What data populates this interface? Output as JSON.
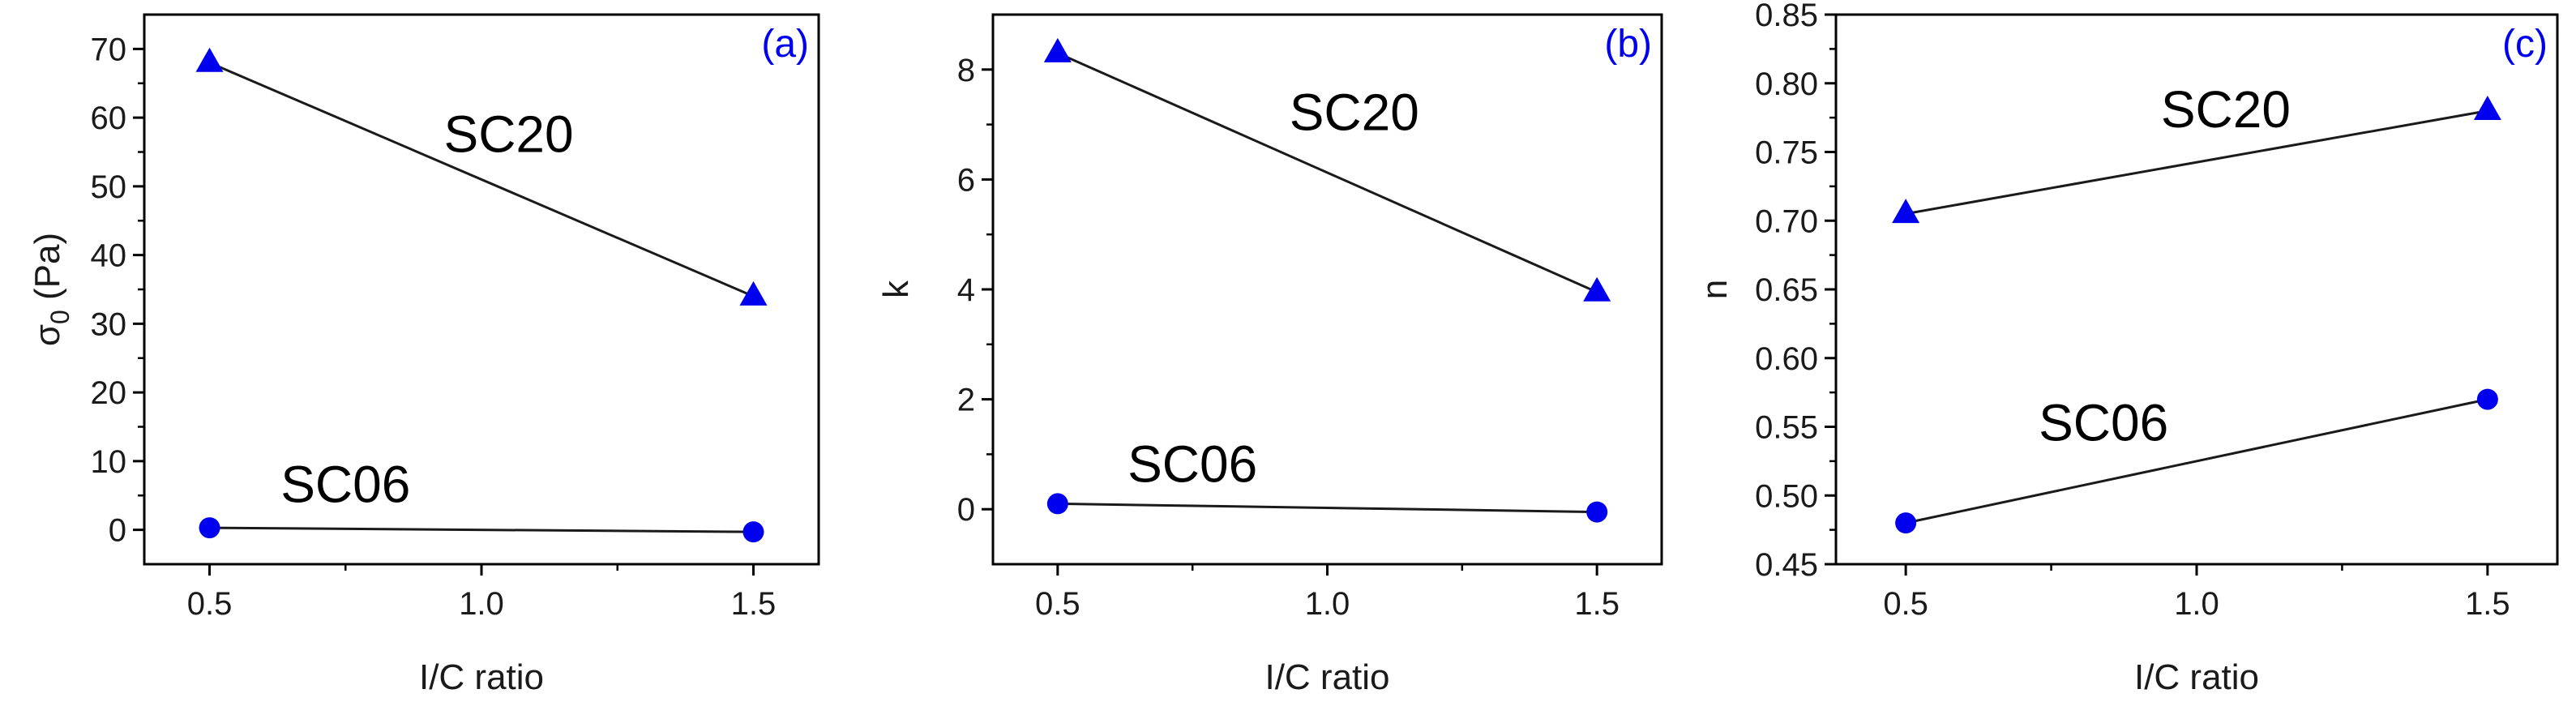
{
  "colors": {
    "marker": "#0000ee",
    "line": "#1a1a1a",
    "panel_letter": "#0000ee"
  },
  "chart_data": [
    {
      "type": "line",
      "panel_label": "(a)",
      "xlabel": "I/C ratio",
      "ylabel_main": "σ",
      "ylabel_sub": "0",
      "ylabel_rest": " (Pa)",
      "xlim": [
        0.38,
        1.62
      ],
      "ylim": [
        -5,
        75
      ],
      "xticks": [
        0.5,
        1.0,
        1.5
      ],
      "xtick_labels": [
        "0.5",
        "1.0",
        "1.5"
      ],
      "yticks": [
        0,
        10,
        20,
        30,
        40,
        50,
        60,
        70
      ],
      "ytick_labels": [
        "0",
        "10",
        "20",
        "30",
        "40",
        "50",
        "60",
        "70"
      ],
      "series": [
        {
          "name": "SC20",
          "marker": "triangle",
          "x": [
            0.5,
            1.5
          ],
          "y": [
            68,
            34
          ],
          "label_at": [
            1.05,
            55
          ]
        },
        {
          "name": "SC06",
          "marker": "circle",
          "x": [
            0.5,
            1.5
          ],
          "y": [
            0.3,
            -0.3
          ],
          "label_at": [
            0.75,
            4
          ]
        }
      ]
    },
    {
      "type": "line",
      "panel_label": "(b)",
      "xlabel": "I/C ratio",
      "ylabel_main": "k",
      "ylabel_sub": "",
      "ylabel_rest": "",
      "xlim": [
        0.38,
        1.62
      ],
      "ylim": [
        -1,
        9
      ],
      "xticks": [
        0.5,
        1.0,
        1.5
      ],
      "xtick_labels": [
        "0.5",
        "1.0",
        "1.5"
      ],
      "yticks": [
        0,
        2,
        4,
        6,
        8
      ],
      "ytick_labels": [
        "0",
        "2",
        "4",
        "6",
        "8"
      ],
      "series": [
        {
          "name": "SC20",
          "marker": "triangle",
          "x": [
            0.5,
            1.5
          ],
          "y": [
            8.3,
            3.95
          ],
          "label_at": [
            1.05,
            6.9
          ]
        },
        {
          "name": "SC06",
          "marker": "circle",
          "x": [
            0.5,
            1.5
          ],
          "y": [
            0.1,
            -0.05
          ],
          "label_at": [
            0.75,
            0.5
          ]
        }
      ]
    },
    {
      "type": "line",
      "panel_label": "(c)",
      "xlabel": "I/C ratio",
      "ylabel_main": "n",
      "ylabel_sub": "",
      "ylabel_rest": "",
      "xlim": [
        0.38,
        1.62
      ],
      "ylim": [
        0.45,
        0.85
      ],
      "xticks": [
        0.5,
        1.0,
        1.5
      ],
      "xtick_labels": [
        "0.5",
        "1.0",
        "1.5"
      ],
      "yticks": [
        0.45,
        0.5,
        0.55,
        0.6,
        0.65,
        0.7,
        0.75,
        0.8,
        0.85
      ],
      "ytick_labels": [
        "0.45",
        "0.50",
        "0.55",
        "0.60",
        "0.65",
        "0.70",
        "0.75",
        "0.80",
        "0.85"
      ],
      "series": [
        {
          "name": "SC20",
          "marker": "triangle",
          "x": [
            0.5,
            1.5
          ],
          "y": [
            0.705,
            0.78
          ],
          "label_at": [
            1.05,
            0.768
          ]
        },
        {
          "name": "SC06",
          "marker": "circle",
          "x": [
            0.5,
            1.5
          ],
          "y": [
            0.48,
            0.57
          ],
          "label_at": [
            0.84,
            0.54
          ]
        }
      ]
    }
  ]
}
